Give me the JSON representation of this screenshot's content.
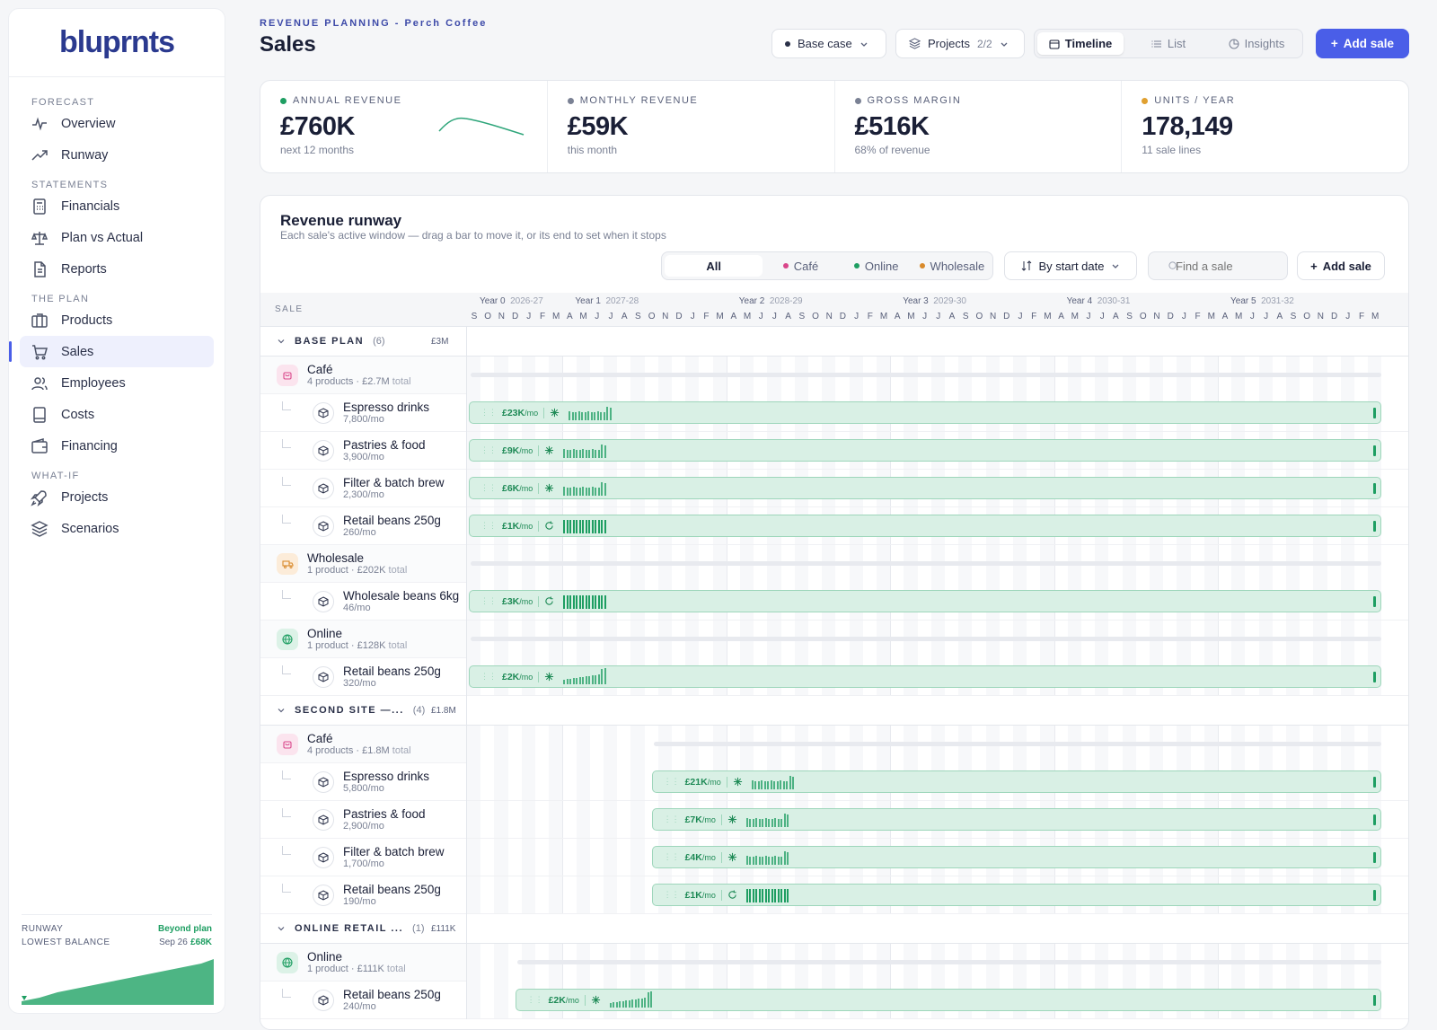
{
  "app": {
    "logo": "bluprnts"
  },
  "sidebar": {
    "sections": [
      {
        "label": "FORECAST",
        "items": [
          {
            "label": "Overview",
            "icon": "pulse-icon"
          },
          {
            "label": "Runway",
            "icon": "trend-icon"
          }
        ]
      },
      {
        "label": "STATEMENTS",
        "items": [
          {
            "label": "Financials",
            "icon": "calculator-icon"
          },
          {
            "label": "Plan vs Actual",
            "icon": "scale-icon"
          },
          {
            "label": "Reports",
            "icon": "document-icon"
          }
        ]
      },
      {
        "label": "THE PLAN",
        "items": [
          {
            "label": "Products",
            "icon": "package-icon"
          },
          {
            "label": "Sales",
            "icon": "cart-icon",
            "active": true
          },
          {
            "label": "Employees",
            "icon": "users-icon"
          },
          {
            "label": "Costs",
            "icon": "book-icon"
          },
          {
            "label": "Financing",
            "icon": "wallet-icon"
          }
        ]
      },
      {
        "label": "WHAT-IF",
        "items": [
          {
            "label": "Projects",
            "icon": "rocket-icon"
          },
          {
            "label": "Scenarios",
            "icon": "layers-icon"
          }
        ]
      }
    ],
    "runway": {
      "label": "RUNWAY",
      "status": "Beyond plan",
      "lowest_label": "LOWEST BALANCE",
      "lowest_date": "Sep 26",
      "lowest_value": "£68K"
    }
  },
  "header": {
    "breadcrumb": "REVENUE PLANNING - Perch Coffee",
    "title": "Sales",
    "scenario": "Base case",
    "projects_label": "Projects",
    "projects_count": "2/2",
    "views": [
      "Timeline",
      "List",
      "Insights"
    ],
    "active_view": "Timeline",
    "add_label": "Add sale"
  },
  "kpis": [
    {
      "label": "ANNUAL REVENUE",
      "value": "£760K",
      "sub": "next 12 months",
      "color": "#1e9e62"
    },
    {
      "label": "MONTHLY REVENUE",
      "value": "£59K",
      "sub": "this month",
      "color": "#7a8194"
    },
    {
      "label": "GROSS MARGIN",
      "value": "£516K",
      "sub": "68% of revenue",
      "color": "#7a8194"
    },
    {
      "label": "UNITS / YEAR",
      "value": "178,149",
      "sub": "11 sale lines",
      "color": "#e0a030"
    }
  ],
  "runway_card": {
    "title": "Revenue runway",
    "subtitle": "Each sale's active window — drag a bar to move it, or its end to set when it stops",
    "filters": [
      "All",
      "Café",
      "Online",
      "Wholesale"
    ],
    "filter_colors": [
      "",
      "#d9468a",
      "#1e9e62",
      "#d98a2b"
    ],
    "sort_label": "By start date",
    "search_placeholder": "Find a sale",
    "add_label": "Add sale",
    "col_label": "SALE",
    "years": [
      {
        "label": "Year 0",
        "range": "2026-27"
      },
      {
        "label": "Year 1",
        "range": "2027-28"
      },
      {
        "label": "Year 2",
        "range": "2028-29"
      },
      {
        "label": "Year 3",
        "range": "2029-30"
      },
      {
        "label": "Year 4",
        "range": "2030-31"
      },
      {
        "label": "Year 5",
        "range": "2031-32"
      }
    ],
    "months": [
      "S",
      "O",
      "N",
      "D",
      "J",
      "F",
      "M",
      "A",
      "M",
      "J",
      "J",
      "A",
      "S",
      "O",
      "N",
      "D",
      "J",
      "F",
      "M",
      "A",
      "M",
      "J",
      "J",
      "A",
      "S",
      "O",
      "N",
      "D",
      "J",
      "F",
      "M",
      "A",
      "M",
      "J",
      "J",
      "A",
      "S",
      "O",
      "N",
      "D",
      "J",
      "F",
      "M",
      "A",
      "M",
      "J",
      "J",
      "A",
      "S",
      "O",
      "N",
      "D",
      "J",
      "F",
      "M",
      "A",
      "M",
      "J",
      "J",
      "A",
      "S",
      "O",
      "N",
      "D",
      "J",
      "F",
      "M"
    ]
  },
  "groups": [
    {
      "name": "BASE PLAN",
      "count": "(6)",
      "total": "£3M",
      "start_month": 0,
      "channels": [
        {
          "name": "Café",
          "sub": "4 products · £2.7M",
          "sub_light": "total",
          "type": "cafe",
          "products": [
            {
              "name": "Espresso drinks",
              "units": "7,800/mo",
              "rate": "£23K",
              "kind": "growth"
            },
            {
              "name": "Pastries & food",
              "units": "3,900/mo",
              "rate": "£9K",
              "kind": "growth"
            },
            {
              "name": "Filter & batch brew",
              "units": "2,300/mo",
              "rate": "£6K",
              "kind": "growth"
            },
            {
              "name": "Retail beans 250g",
              "units": "260/mo",
              "rate": "£1K",
              "kind": "recurring"
            }
          ]
        },
        {
          "name": "Wholesale",
          "sub": "1 product · £202K",
          "sub_light": "total",
          "type": "wholesale",
          "products": [
            {
              "name": "Wholesale beans 6kg",
              "units": "46/mo",
              "rate": "£3K",
              "kind": "recurring"
            }
          ]
        },
        {
          "name": "Online",
          "sub": "1 product · £128K",
          "sub_light": "total",
          "type": "online",
          "products": [
            {
              "name": "Retail beans 250g",
              "units": "320/mo",
              "rate": "£2K",
              "kind": "ramp"
            }
          ]
        }
      ]
    },
    {
      "name": "SECOND SITE —...",
      "count": "(4)",
      "total": "£1.8M",
      "start_month": 13,
      "channels": [
        {
          "name": "Café",
          "sub": "4 products · £1.8M",
          "sub_light": "total",
          "type": "cafe",
          "products": [
            {
              "name": "Espresso drinks",
              "units": "5,800/mo",
              "rate": "£21K",
              "kind": "growth"
            },
            {
              "name": "Pastries & food",
              "units": "2,900/mo",
              "rate": "£7K",
              "kind": "growth"
            },
            {
              "name": "Filter & batch brew",
              "units": "1,700/mo",
              "rate": "£4K",
              "kind": "growth"
            },
            {
              "name": "Retail beans 250g",
              "units": "190/mo",
              "rate": "£1K",
              "kind": "recurring"
            }
          ]
        }
      ]
    },
    {
      "name": "ONLINE RETAIL ...",
      "count": "(1)",
      "total": "£111K",
      "start_month": 3,
      "channels": [
        {
          "name": "Online",
          "sub": "1 product · £111K",
          "sub_light": "total",
          "type": "online",
          "products": [
            {
              "name": "Retail beans 250g",
              "units": "240/mo",
              "rate": "£2K",
              "kind": "ramp"
            }
          ]
        }
      ]
    }
  ]
}
